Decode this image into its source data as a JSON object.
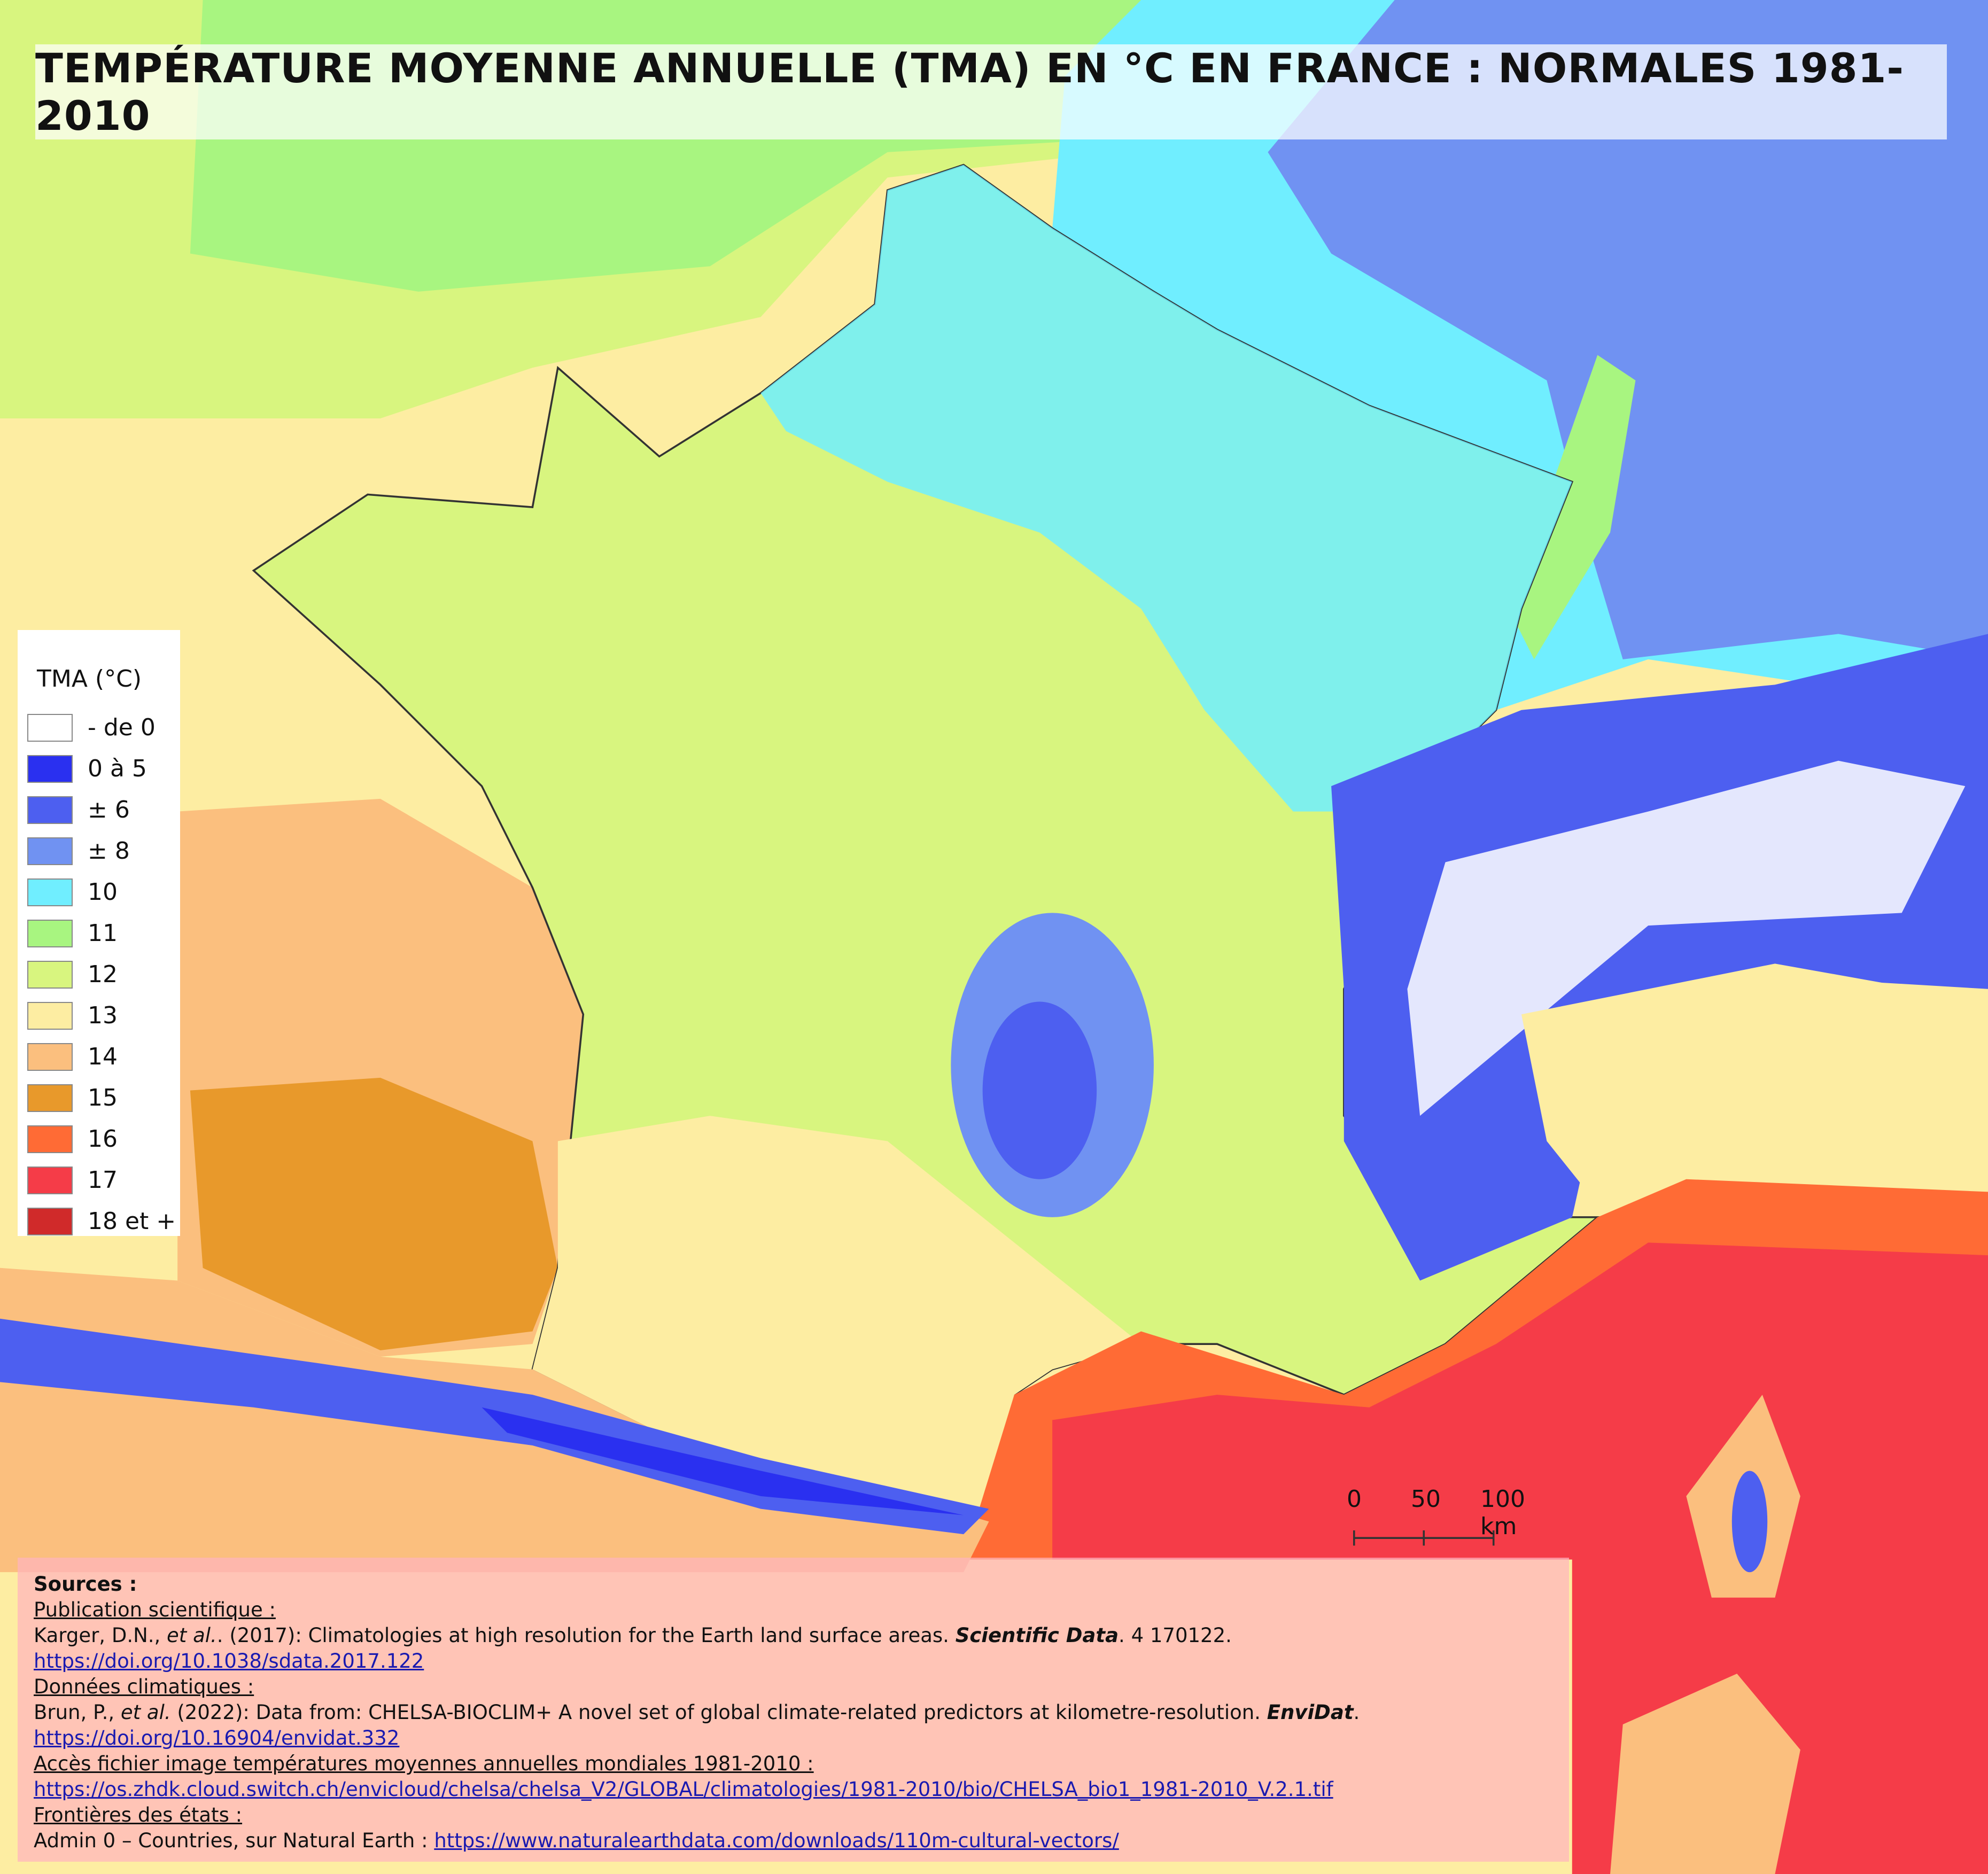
{
  "title": "TEMPÉRATURE MOYENNE ANNUELLE (TMA) EN °C  EN FRANCE : NORMALES 1981-2010",
  "legend": {
    "title": "TMA (°C)",
    "items": [
      {
        "label": "- de 0",
        "color": "#ffffff"
      },
      {
        "label": "0 à 5",
        "color": "#2a30f0"
      },
      {
        "label": "± 6",
        "color": "#4d5ff0"
      },
      {
        "label": "± 8",
        "color": "#7092f2"
      },
      {
        "label": "10",
        "color": "#70eeff"
      },
      {
        "label": "11",
        "color": "#a8f580"
      },
      {
        "label": "12",
        "color": "#d8f57f"
      },
      {
        "label": "13",
        "color": "#fdeda2"
      },
      {
        "label": "14",
        "color": "#fbbf7e"
      },
      {
        "label": "15",
        "color": "#e8992b"
      },
      {
        "label": "16",
        "color": "#ff6b35"
      },
      {
        "label": "17",
        "color": "#f53c48"
      },
      {
        "label": "18 et +",
        "color": "#d02a2a"
      }
    ]
  },
  "scale": {
    "labels": [
      "0",
      "50",
      "100 km"
    ]
  },
  "sources": {
    "heading": "Sources :",
    "lines": [
      [
        {
          "text": "Publication scientifique :",
          "style": "u"
        }
      ],
      [
        {
          "text": "Karger, D.N., "
        },
        {
          "text": "et al.",
          "style": "i"
        },
        {
          "text": ". (2017): Climatologies at high resolution for the Earth land surface areas. "
        },
        {
          "text": "Scientific Data",
          "style": "bi"
        },
        {
          "text": ". 4 170122."
        }
      ],
      [
        {
          "text": "https://doi.org/10.1038/sdata.2017.122",
          "style": "link"
        }
      ],
      [
        {
          "text": "Données climatiques :",
          "style": "u"
        }
      ],
      [
        {
          "text": "Brun, P., "
        },
        {
          "text": "et al.",
          "style": "i"
        },
        {
          "text": " (2022): Data from: CHELSA-BIOCLIM+ A novel set of global climate-related predictors at kilometre-resolution. "
        },
        {
          "text": "EnviDat",
          "style": "bi"
        },
        {
          "text": "."
        }
      ],
      [
        {
          "text": "https://doi.org/10.16904/envidat.332",
          "style": "link"
        }
      ],
      [
        {
          "text": "Accès fichier image températures moyennes annuelles mondiales 1981-2010 :",
          "style": "u"
        }
      ],
      [
        {
          "text": "https://os.zhdk.cloud.switch.ch/envicloud/chelsa/chelsa_V2/GLOBAL/climatologies/1981-2010/bio/CHELSA_bio1_1981-2010_V.2.1.tif",
          "style": "link"
        }
      ],
      [
        {
          "text": "Frontières des états :",
          "style": "u"
        }
      ],
      [
        {
          "text": "Admin 0 – Countries, sur Natural Earth : "
        },
        {
          "text": "https://www.naturalearthdata.com/downloads/110m-cultural-vectors/",
          "style": "link"
        }
      ]
    ]
  }
}
